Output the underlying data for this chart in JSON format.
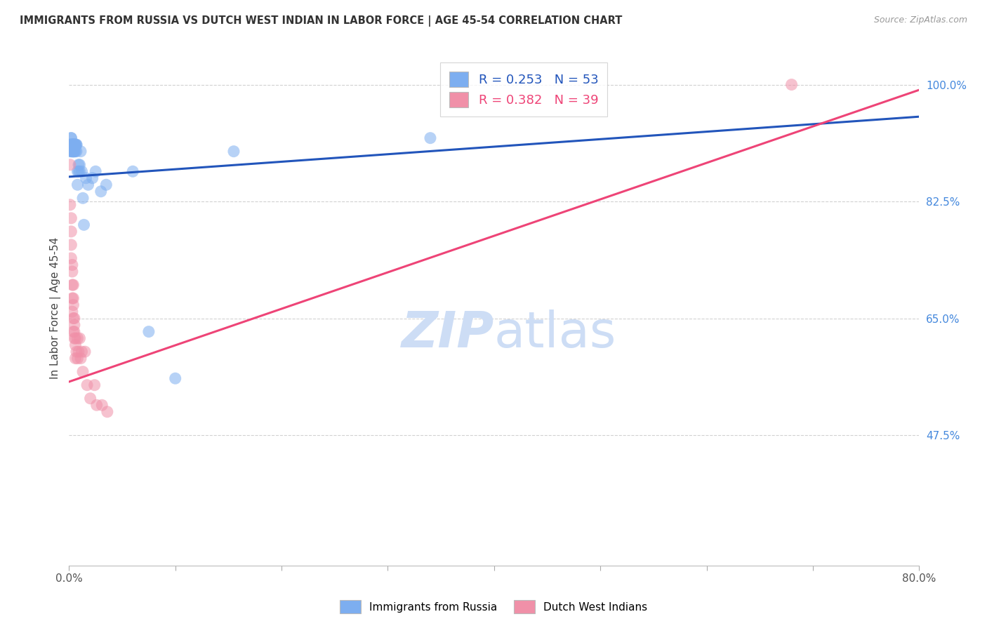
{
  "title": "IMMIGRANTS FROM RUSSIA VS DUTCH WEST INDIAN IN LABOR FORCE | AGE 45-54 CORRELATION CHART",
  "source": "Source: ZipAtlas.com",
  "ylabel": "In Labor Force | Age 45-54",
  "xmin": 0.0,
  "xmax": 0.8,
  "ymin": 0.28,
  "ymax": 1.05,
  "russia_R": 0.253,
  "russia_N": 53,
  "dutch_R": 0.382,
  "dutch_N": 39,
  "russia_color": "#7daef0",
  "dutch_color": "#f090a8",
  "russia_line_color": "#2255bb",
  "dutch_line_color": "#ee4477",
  "watermark_color": "#cdddf5",
  "russia_line_x0": 0.0,
  "russia_line_y0": 0.862,
  "russia_line_x1": 0.8,
  "russia_line_y1": 0.952,
  "dutch_line_x0": 0.0,
  "dutch_line_y0": 0.555,
  "dutch_line_x1": 0.8,
  "dutch_line_y1": 0.992,
  "russia_x": [
    0.001,
    0.001,
    0.001,
    0.002,
    0.002,
    0.002,
    0.002,
    0.002,
    0.003,
    0.003,
    0.003,
    0.003,
    0.003,
    0.003,
    0.004,
    0.004,
    0.004,
    0.004,
    0.004,
    0.004,
    0.005,
    0.005,
    0.005,
    0.005,
    0.005,
    0.005,
    0.006,
    0.006,
    0.006,
    0.007,
    0.007,
    0.007,
    0.008,
    0.008,
    0.009,
    0.009,
    0.01,
    0.01,
    0.011,
    0.012,
    0.013,
    0.014,
    0.016,
    0.018,
    0.022,
    0.025,
    0.03,
    0.035,
    0.06,
    0.075,
    0.1,
    0.155,
    0.34
  ],
  "russia_y": [
    0.91,
    0.9,
    0.91,
    0.92,
    0.9,
    0.91,
    0.91,
    0.92,
    0.91,
    0.9,
    0.91,
    0.91,
    0.9,
    0.91,
    0.91,
    0.9,
    0.91,
    0.9,
    0.91,
    0.9,
    0.91,
    0.91,
    0.9,
    0.91,
    0.91,
    0.9,
    0.91,
    0.9,
    0.91,
    0.91,
    0.9,
    0.91,
    0.85,
    0.87,
    0.88,
    0.87,
    0.87,
    0.88,
    0.9,
    0.87,
    0.83,
    0.79,
    0.86,
    0.85,
    0.86,
    0.87,
    0.84,
    0.85,
    0.87,
    0.63,
    0.56,
    0.9,
    0.92
  ],
  "dutch_x": [
    0.001,
    0.001,
    0.002,
    0.002,
    0.002,
    0.002,
    0.003,
    0.003,
    0.003,
    0.003,
    0.003,
    0.004,
    0.004,
    0.004,
    0.004,
    0.004,
    0.005,
    0.005,
    0.005,
    0.005,
    0.006,
    0.006,
    0.006,
    0.007,
    0.008,
    0.008,
    0.009,
    0.01,
    0.011,
    0.012,
    0.013,
    0.015,
    0.017,
    0.02,
    0.024,
    0.026,
    0.031,
    0.036,
    0.68
  ],
  "dutch_y": [
    0.88,
    0.82,
    0.8,
    0.78,
    0.76,
    0.74,
    0.73,
    0.72,
    0.7,
    0.68,
    0.66,
    0.7,
    0.68,
    0.65,
    0.63,
    0.67,
    0.64,
    0.62,
    0.65,
    0.63,
    0.61,
    0.59,
    0.62,
    0.6,
    0.59,
    0.62,
    0.6,
    0.62,
    0.59,
    0.6,
    0.57,
    0.6,
    0.55,
    0.53,
    0.55,
    0.52,
    0.52,
    0.51,
    1.0
  ]
}
